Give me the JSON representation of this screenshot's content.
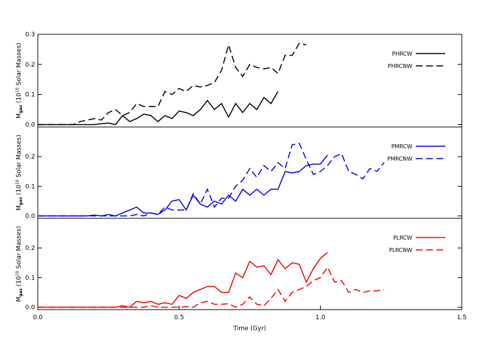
{
  "chart_data": [
    {
      "type": "line",
      "ylabel": {
        "m": "M",
        "sub": "gas",
        "open": "(10",
        "sup": "10",
        "rest": "Solar Masses)"
      },
      "x": [
        0,
        0.025,
        0.05,
        0.075,
        0.1,
        0.125,
        0.15,
        0.175,
        0.2,
        0.225,
        0.25,
        0.275,
        0.3,
        0.325,
        0.35,
        0.375,
        0.4,
        0.425,
        0.45,
        0.475,
        0.5,
        0.525,
        0.55,
        0.575,
        0.6,
        0.625,
        0.65,
        0.675,
        0.7,
        0.725,
        0.75,
        0.775,
        0.8,
        0.825,
        0.85,
        0.875,
        0.9,
        0.925,
        0.95,
        0.975,
        1.0,
        1.025,
        1.05,
        1.075,
        1.1,
        1.125,
        1.15,
        1.175,
        1.2,
        1.225
      ],
      "xlim": [
        0,
        1.5
      ],
      "ylim": [
        -0.008,
        0.3
      ],
      "yticks": [
        {
          "value": 0,
          "label": "0.0"
        },
        0.1,
        0.2,
        0.3
      ],
      "legend": "upper right",
      "series": [
        {
          "name": "PHRCW",
          "color": "#000000",
          "linestyle": "solid",
          "values": [
            0,
            0,
            0,
            0,
            0,
            0,
            0,
            0,
            0,
            0.003,
            0.005,
            0,
            0.03,
            0.01,
            0.02,
            0.035,
            0.03,
            0.01,
            0.03,
            0.02,
            0.045,
            0.04,
            0.03,
            0.05,
            0.08,
            0.05,
            0.07,
            0.025,
            0.07,
            0.04,
            0.07,
            0.05,
            0.09,
            0.07,
            0.11,
            null,
            null,
            null,
            null,
            null,
            null,
            null,
            null,
            null,
            null,
            null,
            null,
            null,
            null,
            null
          ]
        },
        {
          "name": "PHRCNW",
          "color": "#000000",
          "linestyle": "dashed",
          "values": [
            0,
            0,
            0,
            0,
            0,
            0,
            0.01,
            0.015,
            0.02,
            0.015,
            0.04,
            0.05,
            0.03,
            0.04,
            0.07,
            0.06,
            0.06,
            0.06,
            0.11,
            0.1,
            0.12,
            0.11,
            0.13,
            0.125,
            0.13,
            0.14,
            0.18,
            0.265,
            0.19,
            0.16,
            0.2,
            0.19,
            0.185,
            0.19,
            0.17,
            0.23,
            0.23,
            0.27,
            0.265,
            null,
            null,
            null,
            null,
            null,
            null,
            null,
            null,
            null,
            null,
            null
          ]
        }
      ]
    },
    {
      "type": "line",
      "ylabel": {
        "m": "M",
        "sub": "gas",
        "open": "(10",
        "sup": "10",
        "rest": "Solar Masses)"
      },
      "x": [
        0,
        0.025,
        0.05,
        0.075,
        0.1,
        0.125,
        0.15,
        0.175,
        0.2,
        0.225,
        0.25,
        0.275,
        0.3,
        0.325,
        0.35,
        0.375,
        0.4,
        0.425,
        0.45,
        0.475,
        0.5,
        0.525,
        0.55,
        0.575,
        0.6,
        0.625,
        0.65,
        0.675,
        0.7,
        0.725,
        0.75,
        0.775,
        0.8,
        0.825,
        0.85,
        0.875,
        0.9,
        0.925,
        0.95,
        0.975,
        1.0,
        1.025,
        1.05,
        1.075,
        1.1,
        1.125,
        1.15,
        1.175,
        1.2,
        1.225
      ],
      "xlim": [
        0,
        1.5
      ],
      "ylim": [
        -0.008,
        0.3
      ],
      "yticks": [
        {
          "value": 0,
          "label": "0.0"
        },
        0.1,
        0.2
      ],
      "legend": "upper right",
      "series": [
        {
          "name": "PMRCW",
          "color": "#0000ee",
          "linestyle": "solid",
          "values": [
            0,
            0,
            0,
            0,
            0,
            0,
            0,
            0,
            0.003,
            0,
            0.005,
            0,
            0.01,
            0.02,
            0.03,
            0.01,
            0.01,
            0.005,
            0.02,
            0.05,
            0.055,
            0.02,
            0.07,
            0.04,
            0.03,
            0.05,
            0.04,
            0.07,
            0.05,
            0.09,
            0.07,
            0.09,
            0.07,
            0.09,
            0.09,
            0.15,
            0.145,
            0.15,
            0.17,
            0.175,
            0.175,
            0.205,
            null,
            null,
            null,
            null,
            null,
            null,
            null,
            null
          ]
        },
        {
          "name": "PMRCNW",
          "color": "#0000ee",
          "linestyle": "dashed",
          "values": [
            0,
            0,
            0,
            0,
            0,
            0,
            0,
            0,
            0,
            0,
            0,
            0,
            0,
            0,
            0.005,
            0,
            0.01,
            0.005,
            0.03,
            0.02,
            0.02,
            0.02,
            0.075,
            0.04,
            0.09,
            0.03,
            0.06,
            0.06,
            0.1,
            0.12,
            0.16,
            0.13,
            0.17,
            0.15,
            0.18,
            0.16,
            0.24,
            0.245,
            0.19,
            0.14,
            0.15,
            0.17,
            0.2,
            0.21,
            0.15,
            0.14,
            0.125,
            0.16,
            0.15,
            0.18
          ]
        }
      ]
    },
    {
      "type": "line",
      "ylabel": {
        "m": "M",
        "sub": "gas",
        "open": "(10",
        "sup": "10",
        "rest": "Solar Masses)"
      },
      "xlabel": "Time (Gyr)",
      "x": [
        0,
        0.025,
        0.05,
        0.075,
        0.1,
        0.125,
        0.15,
        0.175,
        0.2,
        0.225,
        0.25,
        0.275,
        0.3,
        0.325,
        0.35,
        0.375,
        0.4,
        0.425,
        0.45,
        0.475,
        0.5,
        0.525,
        0.55,
        0.575,
        0.6,
        0.625,
        0.65,
        0.675,
        0.7,
        0.725,
        0.75,
        0.775,
        0.8,
        0.825,
        0.85,
        0.875,
        0.9,
        0.925,
        0.95,
        0.975,
        1.0,
        1.025,
        1.05,
        1.075,
        1.1,
        1.125,
        1.15,
        1.175,
        1.2,
        1.225
      ],
      "xlim": [
        0,
        1.5
      ],
      "ylim": [
        -0.008,
        0.3
      ],
      "xticks": [
        {
          "value": 0,
          "label": "0.0"
        },
        0.5,
        {
          "value": 1,
          "label": "1.0"
        },
        1.5
      ],
      "yticks": [
        {
          "value": 0,
          "label": "0.0"
        },
        0.1,
        0.2
      ],
      "legend": "upper right",
      "series": [
        {
          "name": "PLRCW",
          "color": "#ee0000",
          "linestyle": "solid",
          "values": [
            0,
            0,
            0,
            0,
            0,
            0,
            0,
            0,
            0,
            0,
            0,
            0,
            0.005,
            0,
            0.02,
            0.015,
            0.02,
            0.01,
            0.015,
            0.01,
            0.04,
            0.03,
            0.05,
            0.06,
            0.07,
            0.07,
            0.05,
            0.05,
            0.115,
            0.1,
            0.155,
            0.135,
            0.14,
            0.11,
            0.16,
            0.13,
            0.15,
            0.145,
            0.085,
            0.13,
            0.165,
            0.185,
            null,
            null,
            null,
            null,
            null,
            null,
            null,
            null
          ]
        },
        {
          "name": "PLRCNW",
          "color": "#ee0000",
          "linestyle": "dashed",
          "values": [
            0,
            0,
            0,
            0,
            0,
            0,
            0,
            0,
            0,
            0,
            0,
            0,
            0,
            0,
            0,
            0,
            0.005,
            0,
            0,
            0,
            0,
            0.002,
            0,
            0.015,
            0.02,
            0.01,
            0.01,
            0.012,
            0,
            0.01,
            0.035,
            0.01,
            0.005,
            0.03,
            0.06,
            0.02,
            0.05,
            0.06,
            0.07,
            0.09,
            0.1,
            0.135,
            0.085,
            0.09,
            0.05,
            0.06,
            0.05,
            0.055,
            0.055,
            0.06
          ]
        }
      ]
    }
  ]
}
